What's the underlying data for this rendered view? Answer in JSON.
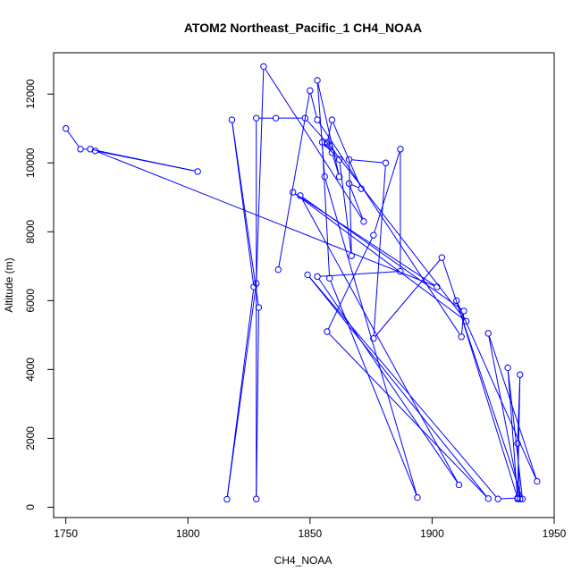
{
  "chart_data": {
    "type": "line",
    "title": "ATOM2 Northeast_Pacific_1 CH4_NOAA",
    "xlabel": "CH4_NOAA",
    "ylabel": "Altitude (m)",
    "xlim": [
      1745,
      1950
    ],
    "ylim": [
      -300,
      13200
    ],
    "x_ticks": [
      1750,
      1800,
      1850,
      1900,
      1950
    ],
    "y_ticks": [
      0,
      2000,
      4000,
      6000,
      8000,
      10000,
      12000
    ],
    "grid": false,
    "legend": "none",
    "series_color": "#0000ff",
    "point_marker": "open-circle",
    "series": [
      {
        "points": [
          [
            1750,
            11000
          ],
          [
            1756,
            10400
          ],
          [
            1760,
            10400
          ],
          [
            1804,
            9750
          ],
          [
            1762,
            10350
          ],
          [
            1902,
            6400
          ],
          [
            1843,
            9150
          ],
          [
            1914,
            5400
          ],
          [
            1857,
            10600
          ],
          [
            1858,
            10500
          ],
          [
            1848,
            11300
          ],
          [
            1836,
            11300
          ],
          [
            1828,
            11300
          ],
          [
            1828,
            240
          ],
          [
            1829,
            5800
          ],
          [
            1818,
            11250
          ],
          [
            1827,
            6400
          ],
          [
            1816,
            230
          ],
          [
            1828,
            6500
          ],
          [
            1831,
            12800
          ],
          [
            1872,
            8300
          ],
          [
            1866,
            9400
          ],
          [
            1871,
            9250
          ],
          [
            1859,
            11250
          ],
          [
            1857,
            10550
          ],
          [
            1859,
            10300
          ],
          [
            1862,
            9600
          ],
          [
            1853,
            12400
          ],
          [
            1856,
            9600
          ],
          [
            1894,
            280
          ],
          [
            1858,
            6650
          ],
          [
            1855,
            10600
          ],
          [
            1862,
            10100
          ],
          [
            1867,
            7300
          ],
          [
            1866,
            10100
          ],
          [
            1881,
            10000
          ],
          [
            1876,
            4900
          ],
          [
            1904,
            7250
          ],
          [
            1937,
            240
          ],
          [
            1931,
            4050
          ],
          [
            1935,
            240
          ],
          [
            1936,
            3850
          ],
          [
            1935,
            1850
          ],
          [
            1936,
            240
          ],
          [
            1923,
            5050
          ],
          [
            1943,
            750
          ],
          [
            1910,
            6000
          ],
          [
            1935,
            270
          ],
          [
            1927,
            240
          ],
          [
            1849,
            6750
          ],
          [
            1923,
            250
          ],
          [
            1857,
            5100
          ],
          [
            1876,
            7900
          ],
          [
            1887,
            10400
          ],
          [
            1887,
            6850
          ],
          [
            1853,
            6700
          ],
          [
            1911,
            650
          ],
          [
            1846,
            9050
          ],
          [
            1913,
            5700
          ],
          [
            1912,
            4950
          ],
          [
            1853,
            11250
          ],
          [
            1850,
            12100
          ],
          [
            1837,
            6900
          ]
        ]
      }
    ]
  }
}
